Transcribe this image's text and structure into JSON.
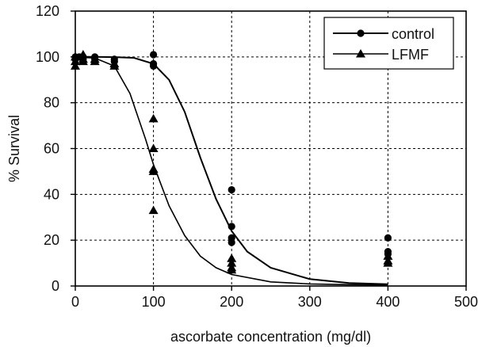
{
  "chart_data": {
    "type": "scatter",
    "title": "",
    "xlabel": "ascorbate concentration (mg/dl)",
    "ylabel": "% Survival",
    "xlim": [
      0,
      500
    ],
    "ylim": [
      0,
      120
    ],
    "xticks": [
      0,
      100,
      200,
      300,
      400,
      500
    ],
    "yticks": [
      0,
      20,
      40,
      60,
      80,
      100,
      120
    ],
    "grid": "dashed",
    "legend_position": "top-right",
    "series": [
      {
        "name": "control",
        "marker": "circle",
        "color": "#000000",
        "points": [
          {
            "x": 0,
            "y": 100
          },
          {
            "x": 0,
            "y": 99
          },
          {
            "x": 5,
            "y": 100
          },
          {
            "x": 10,
            "y": 100
          },
          {
            "x": 10,
            "y": 99
          },
          {
            "x": 25,
            "y": 99
          },
          {
            "x": 25,
            "y": 100
          },
          {
            "x": 50,
            "y": 99
          },
          {
            "x": 50,
            "y": 98
          },
          {
            "x": 100,
            "y": 101
          },
          {
            "x": 100,
            "y": 97
          },
          {
            "x": 100,
            "y": 96
          },
          {
            "x": 200,
            "y": 42
          },
          {
            "x": 200,
            "y": 26
          },
          {
            "x": 200,
            "y": 21
          },
          {
            "x": 200,
            "y": 19
          },
          {
            "x": 400,
            "y": 21
          },
          {
            "x": 400,
            "y": 15
          },
          {
            "x": 400,
            "y": 14
          }
        ],
        "curve": [
          {
            "x": 0,
            "y": 100
          },
          {
            "x": 25,
            "y": 100
          },
          {
            "x": 50,
            "y": 99.9
          },
          {
            "x": 75,
            "y": 99.6
          },
          {
            "x": 100,
            "y": 97
          },
          {
            "x": 120,
            "y": 90
          },
          {
            "x": 140,
            "y": 76
          },
          {
            "x": 160,
            "y": 56
          },
          {
            "x": 180,
            "y": 38
          },
          {
            "x": 200,
            "y": 24
          },
          {
            "x": 220,
            "y": 15
          },
          {
            "x": 250,
            "y": 8
          },
          {
            "x": 300,
            "y": 3
          },
          {
            "x": 350,
            "y": 1.3
          },
          {
            "x": 400,
            "y": 0.8
          }
        ]
      },
      {
        "name": "LFMF",
        "marker": "triangle",
        "color": "#000000",
        "points": [
          {
            "x": 0,
            "y": 100
          },
          {
            "x": 0,
            "y": 98
          },
          {
            "x": 0,
            "y": 96
          },
          {
            "x": 10,
            "y": 101
          },
          {
            "x": 10,
            "y": 99
          },
          {
            "x": 10,
            "y": 98
          },
          {
            "x": 25,
            "y": 99
          },
          {
            "x": 25,
            "y": 98
          },
          {
            "x": 50,
            "y": 97
          },
          {
            "x": 50,
            "y": 96
          },
          {
            "x": 100,
            "y": 73
          },
          {
            "x": 100,
            "y": 60
          },
          {
            "x": 100,
            "y": 51
          },
          {
            "x": 100,
            "y": 50
          },
          {
            "x": 100,
            "y": 33
          },
          {
            "x": 200,
            "y": 12
          },
          {
            "x": 200,
            "y": 10
          },
          {
            "x": 200,
            "y": 8
          },
          {
            "x": 200,
            "y": 7
          },
          {
            "x": 400,
            "y": 13
          },
          {
            "x": 400,
            "y": 11
          },
          {
            "x": 400,
            "y": 10
          }
        ],
        "curve": [
          {
            "x": 0,
            "y": 100
          },
          {
            "x": 25,
            "y": 99.5
          },
          {
            "x": 50,
            "y": 96
          },
          {
            "x": 70,
            "y": 84
          },
          {
            "x": 90,
            "y": 64
          },
          {
            "x": 100,
            "y": 53
          },
          {
            "x": 120,
            "y": 35
          },
          {
            "x": 140,
            "y": 22
          },
          {
            "x": 160,
            "y": 13
          },
          {
            "x": 180,
            "y": 8
          },
          {
            "x": 200,
            "y": 5
          },
          {
            "x": 250,
            "y": 1.8
          },
          {
            "x": 300,
            "y": 0.9
          },
          {
            "x": 350,
            "y": 0.6
          },
          {
            "x": 400,
            "y": 0.4
          }
        ]
      }
    ]
  }
}
